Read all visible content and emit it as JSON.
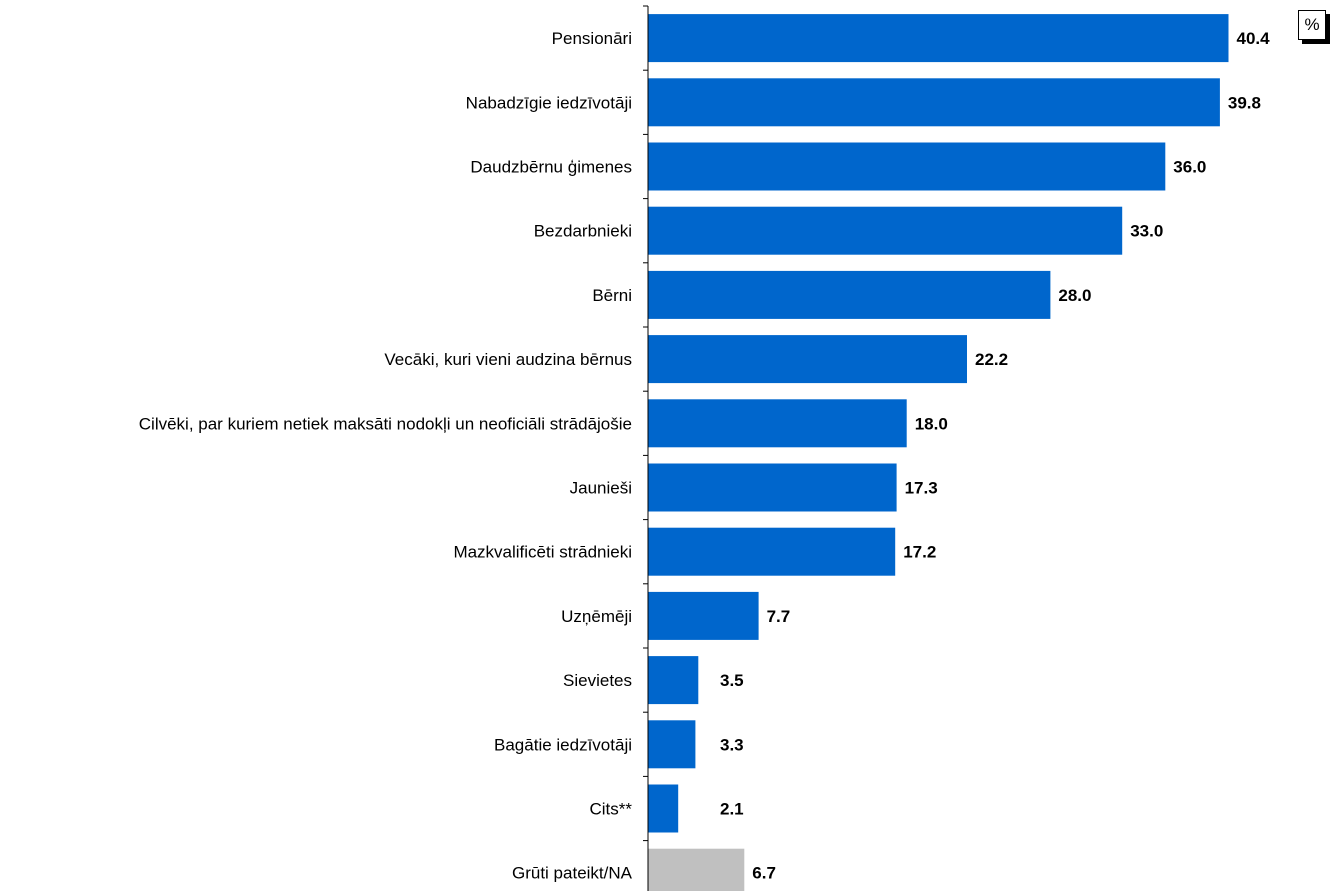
{
  "unit_label": "%",
  "colors": {
    "main": "#0066cc",
    "na": "#c0c0c0",
    "axis": "#000000"
  },
  "chart_data": {
    "type": "bar",
    "orientation": "horizontal",
    "categories": [
      "Pensionāri",
      "Nabadzīgie iedzīvotāji",
      "Daudzbērnu ģimenes",
      "Bezdarbnieki",
      "Bērni",
      "Vecāki, kuri vieni audzina bērnus",
      "Cilvēki, par kuriem netiek maksāti nodokļi un neoficiāli strādājošie",
      "Jaunieši",
      "Mazkvalificēti strādnieki",
      "Uzņēmēji",
      "Sievietes",
      "Bagātie iedzīvotāji",
      "Cits**",
      "Grūti pateikt/NA"
    ],
    "values": [
      40.4,
      39.8,
      36.0,
      33.0,
      28.0,
      22.2,
      18.0,
      17.3,
      17.2,
      7.7,
      3.5,
      3.3,
      2.1,
      6.7
    ],
    "value_labels": [
      "40.4",
      "39.8",
      "36.0",
      "33.0",
      "28.0",
      "22.2",
      "18.0",
      "17.3",
      "17.2",
      "7.7",
      "3.5",
      "3.3",
      "2.1",
      "6.7"
    ],
    "bar_colors": [
      "#0066cc",
      "#0066cc",
      "#0066cc",
      "#0066cc",
      "#0066cc",
      "#0066cc",
      "#0066cc",
      "#0066cc",
      "#0066cc",
      "#0066cc",
      "#0066cc",
      "#0066cc",
      "#0066cc",
      "#c0c0c0"
    ],
    "xlim": [
      0,
      43
    ],
    "grid": false,
    "legend": "none"
  }
}
